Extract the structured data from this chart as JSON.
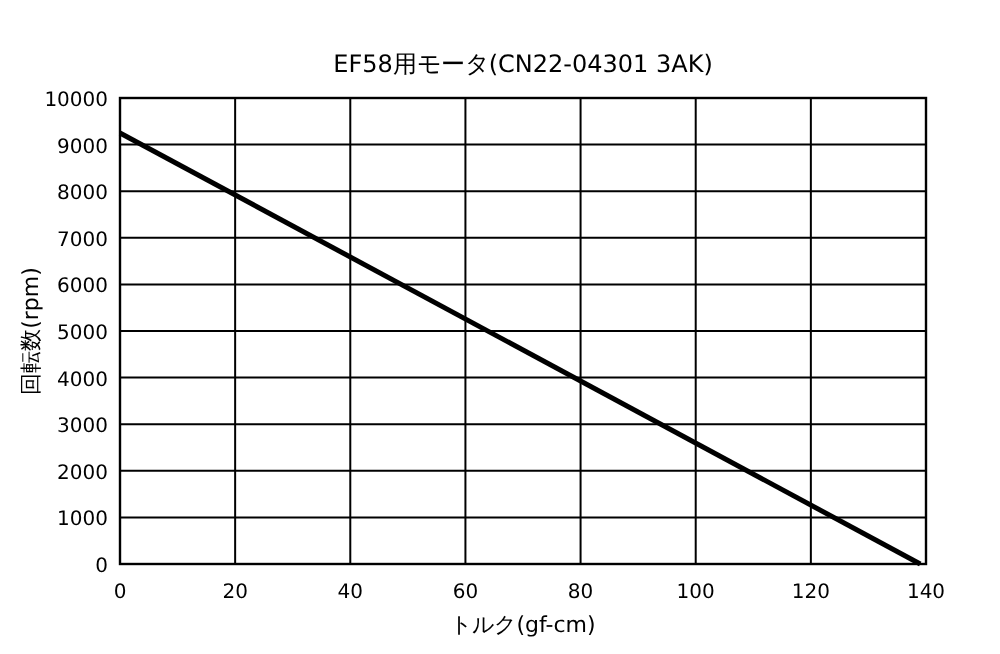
{
  "chart_data": {
    "type": "line",
    "title": "EF58用モータ(CN22-04301 3AK)",
    "xlabel": "トルク(gf-cm)",
    "ylabel": "回転数(rpm)",
    "x": [
      0,
      139
    ],
    "series": [
      {
        "color": "#000000",
        "values": [
          9250,
          0
        ]
      }
    ],
    "xlim": [
      0,
      140
    ],
    "xticks": [
      0,
      20,
      40,
      60,
      80,
      100,
      120,
      140
    ],
    "ylim": [
      0,
      10000
    ],
    "yticks": [
      0,
      1000,
      2000,
      3000,
      4000,
      5000,
      6000,
      7000,
      8000,
      9000,
      10000
    ],
    "grid": true,
    "line_style": "solid"
  }
}
